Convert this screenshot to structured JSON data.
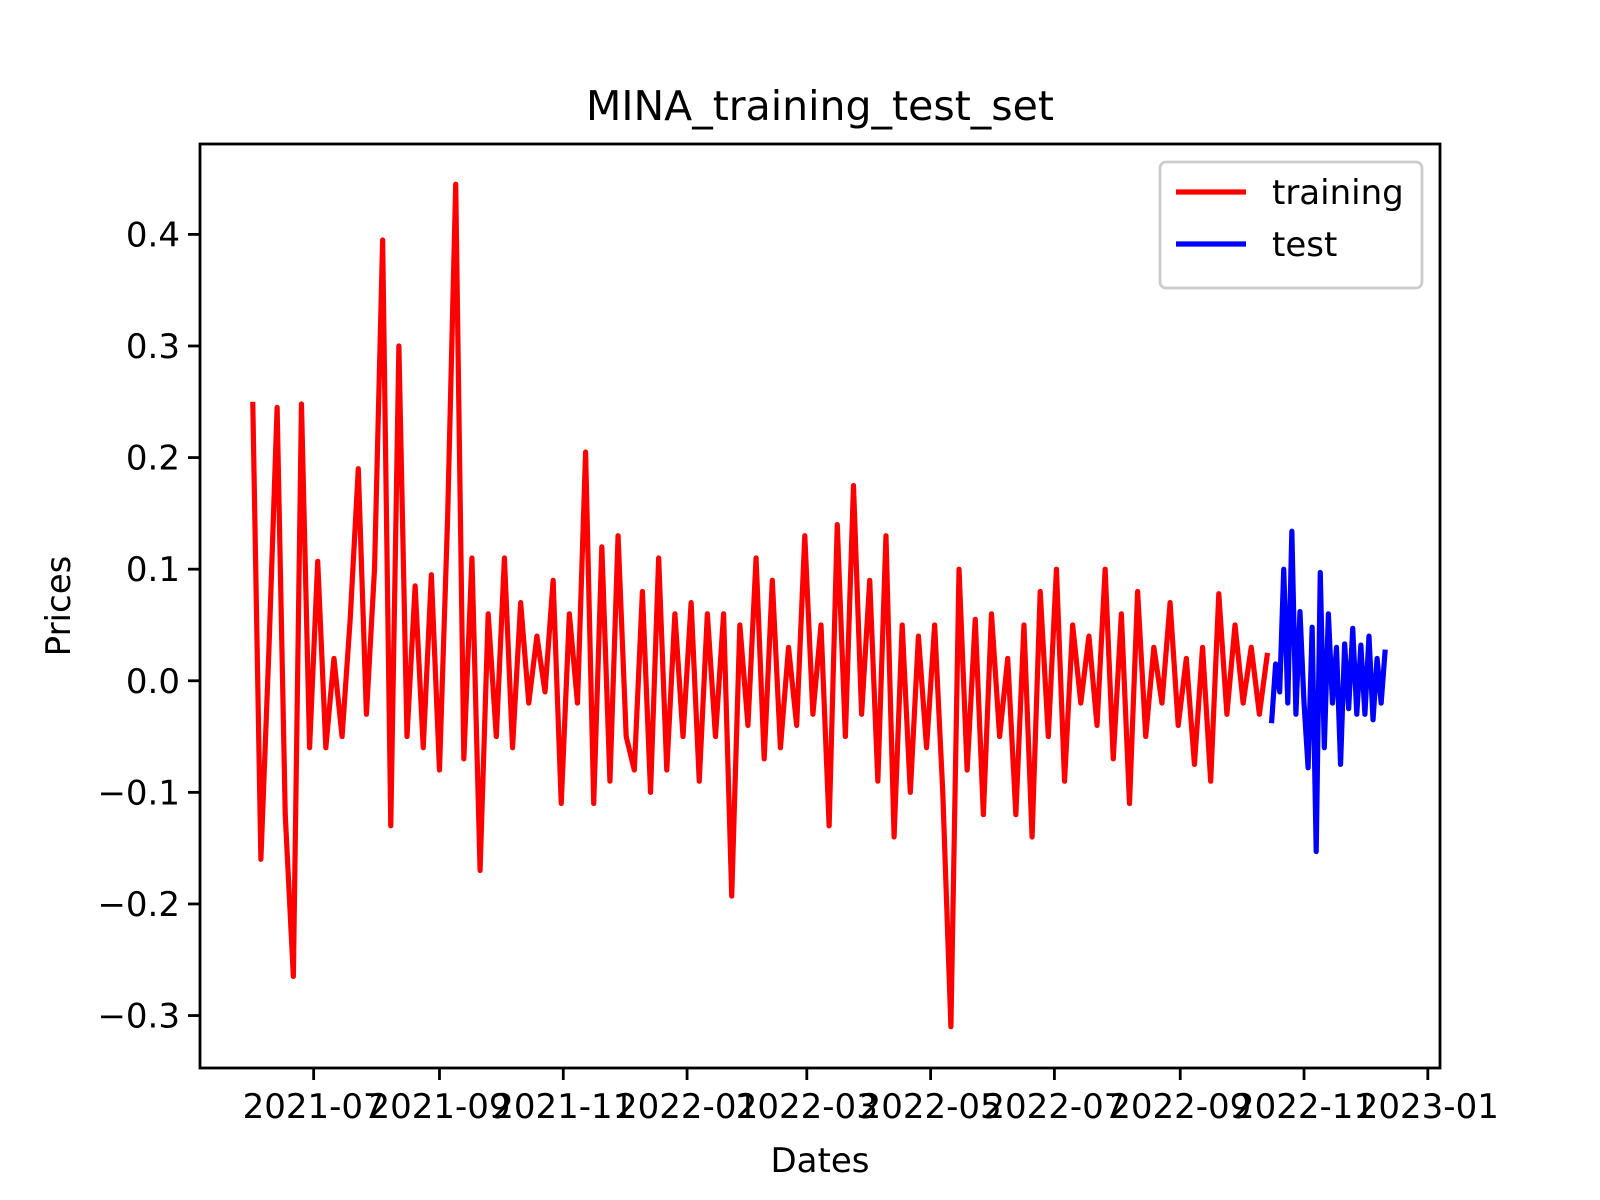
{
  "chart_data": {
    "type": "line",
    "title": "MINA_training_test_set",
    "x_label": "Dates",
    "y_label": "Prices",
    "legend": "upper right",
    "grid": false,
    "xlim": [
      "2021-05-06",
      "2023-01-07"
    ],
    "xticks": [
      {
        "value": "2021-07-01",
        "label": "2021-07"
      },
      {
        "value": "2021-09-01",
        "label": "2021-09"
      },
      {
        "value": "2021-11-01",
        "label": "2021-11"
      },
      {
        "value": "2022-01-01",
        "label": "2022-01"
      },
      {
        "value": "2022-03-01",
        "label": "2022-03"
      },
      {
        "value": "2022-05-01",
        "label": "2022-05"
      },
      {
        "value": "2022-07-01",
        "label": "2022-07"
      },
      {
        "value": "2022-09-01",
        "label": "2022-09"
      },
      {
        "value": "2022-11-01",
        "label": "2022-11"
      },
      {
        "value": "2023-01-01",
        "label": "2023-01"
      }
    ],
    "ylim": [
      -0.347,
      0.481
    ],
    "yticks": [
      {
        "value": -0.3,
        "label": "−0.3"
      },
      {
        "value": -0.2,
        "label": "−0.2"
      },
      {
        "value": -0.1,
        "label": "−0.1"
      },
      {
        "value": 0,
        "label": "0.0"
      },
      0.1,
      0.2,
      0.3,
      0.4
    ],
    "series": [
      {
        "name": "training",
        "color": "#ff0000",
        "x": [
          "2021-06-01",
          "2021-06-05",
          "2021-06-09",
          "2021-06-13",
          "2021-06-17",
          "2021-06-21",
          "2021-06-25",
          "2021-06-29",
          "2021-07-03",
          "2021-07-07",
          "2021-07-11",
          "2021-07-15",
          "2021-07-19",
          "2021-07-23",
          "2021-07-27",
          "2021-07-31",
          "2021-08-04",
          "2021-08-08",
          "2021-08-12",
          "2021-08-16",
          "2021-08-20",
          "2021-08-24",
          "2021-08-28",
          "2021-09-01",
          "2021-09-05",
          "2021-09-09",
          "2021-09-13",
          "2021-09-17",
          "2021-09-21",
          "2021-09-25",
          "2021-09-29",
          "2021-10-03",
          "2021-10-07",
          "2021-10-11",
          "2021-10-15",
          "2021-10-19",
          "2021-10-23",
          "2021-10-27",
          "2021-10-31",
          "2021-11-04",
          "2021-11-08",
          "2021-11-12",
          "2021-11-16",
          "2021-11-20",
          "2021-11-24",
          "2021-11-28",
          "2021-12-02",
          "2021-12-06",
          "2021-12-10",
          "2021-12-14",
          "2021-12-18",
          "2021-12-22",
          "2021-12-26",
          "2021-12-30",
          "2022-01-03",
          "2022-01-07",
          "2022-01-11",
          "2022-01-15",
          "2022-01-19",
          "2022-01-23",
          "2022-01-27",
          "2022-01-31",
          "2022-02-04",
          "2022-02-08",
          "2022-02-12",
          "2022-02-16",
          "2022-02-20",
          "2022-02-24",
          "2022-02-28",
          "2022-03-04",
          "2022-03-08",
          "2022-03-12",
          "2022-03-16",
          "2022-03-20",
          "2022-03-24",
          "2022-03-28",
          "2022-04-01",
          "2022-04-05",
          "2022-04-09",
          "2022-04-13",
          "2022-04-17",
          "2022-04-21",
          "2022-04-25",
          "2022-04-29",
          "2022-05-03",
          "2022-05-07",
          "2022-05-11",
          "2022-05-15",
          "2022-05-19",
          "2022-05-23",
          "2022-05-27",
          "2022-05-31",
          "2022-06-04",
          "2022-06-08",
          "2022-06-12",
          "2022-06-16",
          "2022-06-20",
          "2022-06-24",
          "2022-06-28",
          "2022-07-02",
          "2022-07-06",
          "2022-07-10",
          "2022-07-14",
          "2022-07-18",
          "2022-07-22",
          "2022-07-26",
          "2022-07-30",
          "2022-08-03",
          "2022-08-07",
          "2022-08-11",
          "2022-08-15",
          "2022-08-19",
          "2022-08-23",
          "2022-08-27",
          "2022-08-31",
          "2022-09-04",
          "2022-09-08",
          "2022-09-12",
          "2022-09-16",
          "2022-09-20",
          "2022-09-24",
          "2022-09-28",
          "2022-10-02",
          "2022-10-06",
          "2022-10-10",
          "2022-10-14"
        ],
        "values": [
          0.25,
          -0.16,
          0.03,
          0.245,
          -0.12,
          -0.265,
          0.248,
          -0.06,
          0.107,
          -0.06,
          0.02,
          -0.05,
          0.055,
          0.19,
          -0.03,
          0.1,
          0.395,
          -0.13,
          0.3,
          -0.05,
          0.085,
          -0.06,
          0.095,
          -0.08,
          0.145,
          0.445,
          -0.07,
          0.11,
          -0.17,
          0.06,
          -0.05,
          0.11,
          -0.06,
          0.07,
          -0.02,
          0.04,
          -0.01,
          0.09,
          -0.11,
          0.06,
          -0.02,
          0.205,
          -0.11,
          0.12,
          -0.09,
          0.13,
          -0.05,
          -0.08,
          0.08,
          -0.1,
          0.11,
          -0.08,
          0.06,
          -0.05,
          0.07,
          -0.09,
          0.06,
          -0.05,
          0.06,
          -0.193,
          0.05,
          -0.04,
          0.11,
          -0.07,
          0.09,
          -0.06,
          0.03,
          -0.04,
          0.13,
          -0.03,
          0.05,
          -0.13,
          0.14,
          -0.05,
          0.175,
          -0.03,
          0.09,
          -0.09,
          0.13,
          -0.14,
          0.05,
          -0.1,
          0.04,
          -0.06,
          0.05,
          -0.1,
          -0.31,
          0.1,
          -0.08,
          0.055,
          -0.12,
          0.06,
          -0.05,
          0.02,
          -0.12,
          0.05,
          -0.14,
          0.08,
          -0.05,
          0.1,
          -0.09,
          0.05,
          -0.02,
          0.04,
          -0.04,
          0.1,
          -0.07,
          0.06,
          -0.11,
          0.08,
          -0.05,
          0.03,
          -0.02,
          0.07,
          -0.04,
          0.02,
          -0.075,
          0.03,
          -0.09,
          0.078,
          -0.03,
          0.05,
          -0.02,
          0.03,
          -0.03,
          0.025
        ]
      },
      {
        "name": "test",
        "color": "#0000ff",
        "x": [
          "2022-10-16",
          "2022-10-18",
          "2022-10-20",
          "2022-10-22",
          "2022-10-24",
          "2022-10-26",
          "2022-10-28",
          "2022-10-30",
          "2022-11-01",
          "2022-11-03",
          "2022-11-05",
          "2022-11-07",
          "2022-11-09",
          "2022-11-11",
          "2022-11-13",
          "2022-11-15",
          "2022-11-17",
          "2022-11-19",
          "2022-11-21",
          "2022-11-23",
          "2022-11-25",
          "2022-11-27",
          "2022-11-29",
          "2022-12-01",
          "2022-12-03",
          "2022-12-05",
          "2022-12-07",
          "2022-12-09",
          "2022-12-11"
        ],
        "values": [
          -0.038,
          0.015,
          -0.01,
          0.1,
          -0.02,
          0.134,
          -0.03,
          0.062,
          -0.02,
          -0.078,
          0.048,
          -0.153,
          0.097,
          -0.06,
          0.06,
          -0.02,
          0.03,
          -0.075,
          0.033,
          -0.025,
          0.047,
          -0.03,
          0.032,
          -0.03,
          0.04,
          -0.035,
          0.02,
          -0.02,
          0.028
        ]
      }
    ]
  }
}
